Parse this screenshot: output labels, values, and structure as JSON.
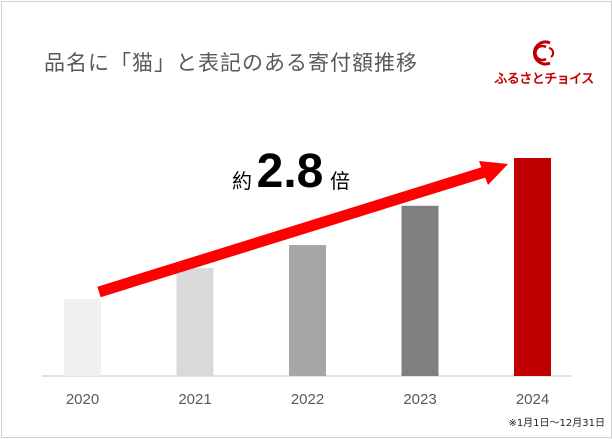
{
  "title": "品名に「猫」と表記のある寄付額推移",
  "logo": {
    "text": "ふるさとチョイス",
    "brand_color": "#c00000"
  },
  "annotation": {
    "prefix": "約",
    "value": "2.8",
    "suffix": "倍"
  },
  "footnote": "※1月1日～12月31日",
  "chart_data": {
    "type": "bar",
    "title": "品名に「猫」と表記のある寄付額推移",
    "categories": [
      "2020",
      "2021",
      "2022",
      "2023",
      "2024"
    ],
    "values": [
      1.0,
      1.4,
      1.7,
      2.21,
      2.83
    ],
    "value_unit": "relative to 2020 (estimated, no y-axis shown)",
    "colors": [
      "#f0f0f0",
      "#d9d9d9",
      "#a6a6a6",
      "#7f7f7f",
      "#c00000"
    ],
    "xlabel": "",
    "ylabel": "",
    "ylim": [
      0,
      2.83
    ],
    "grid": false,
    "arrow_color": "#ff0000"
  }
}
